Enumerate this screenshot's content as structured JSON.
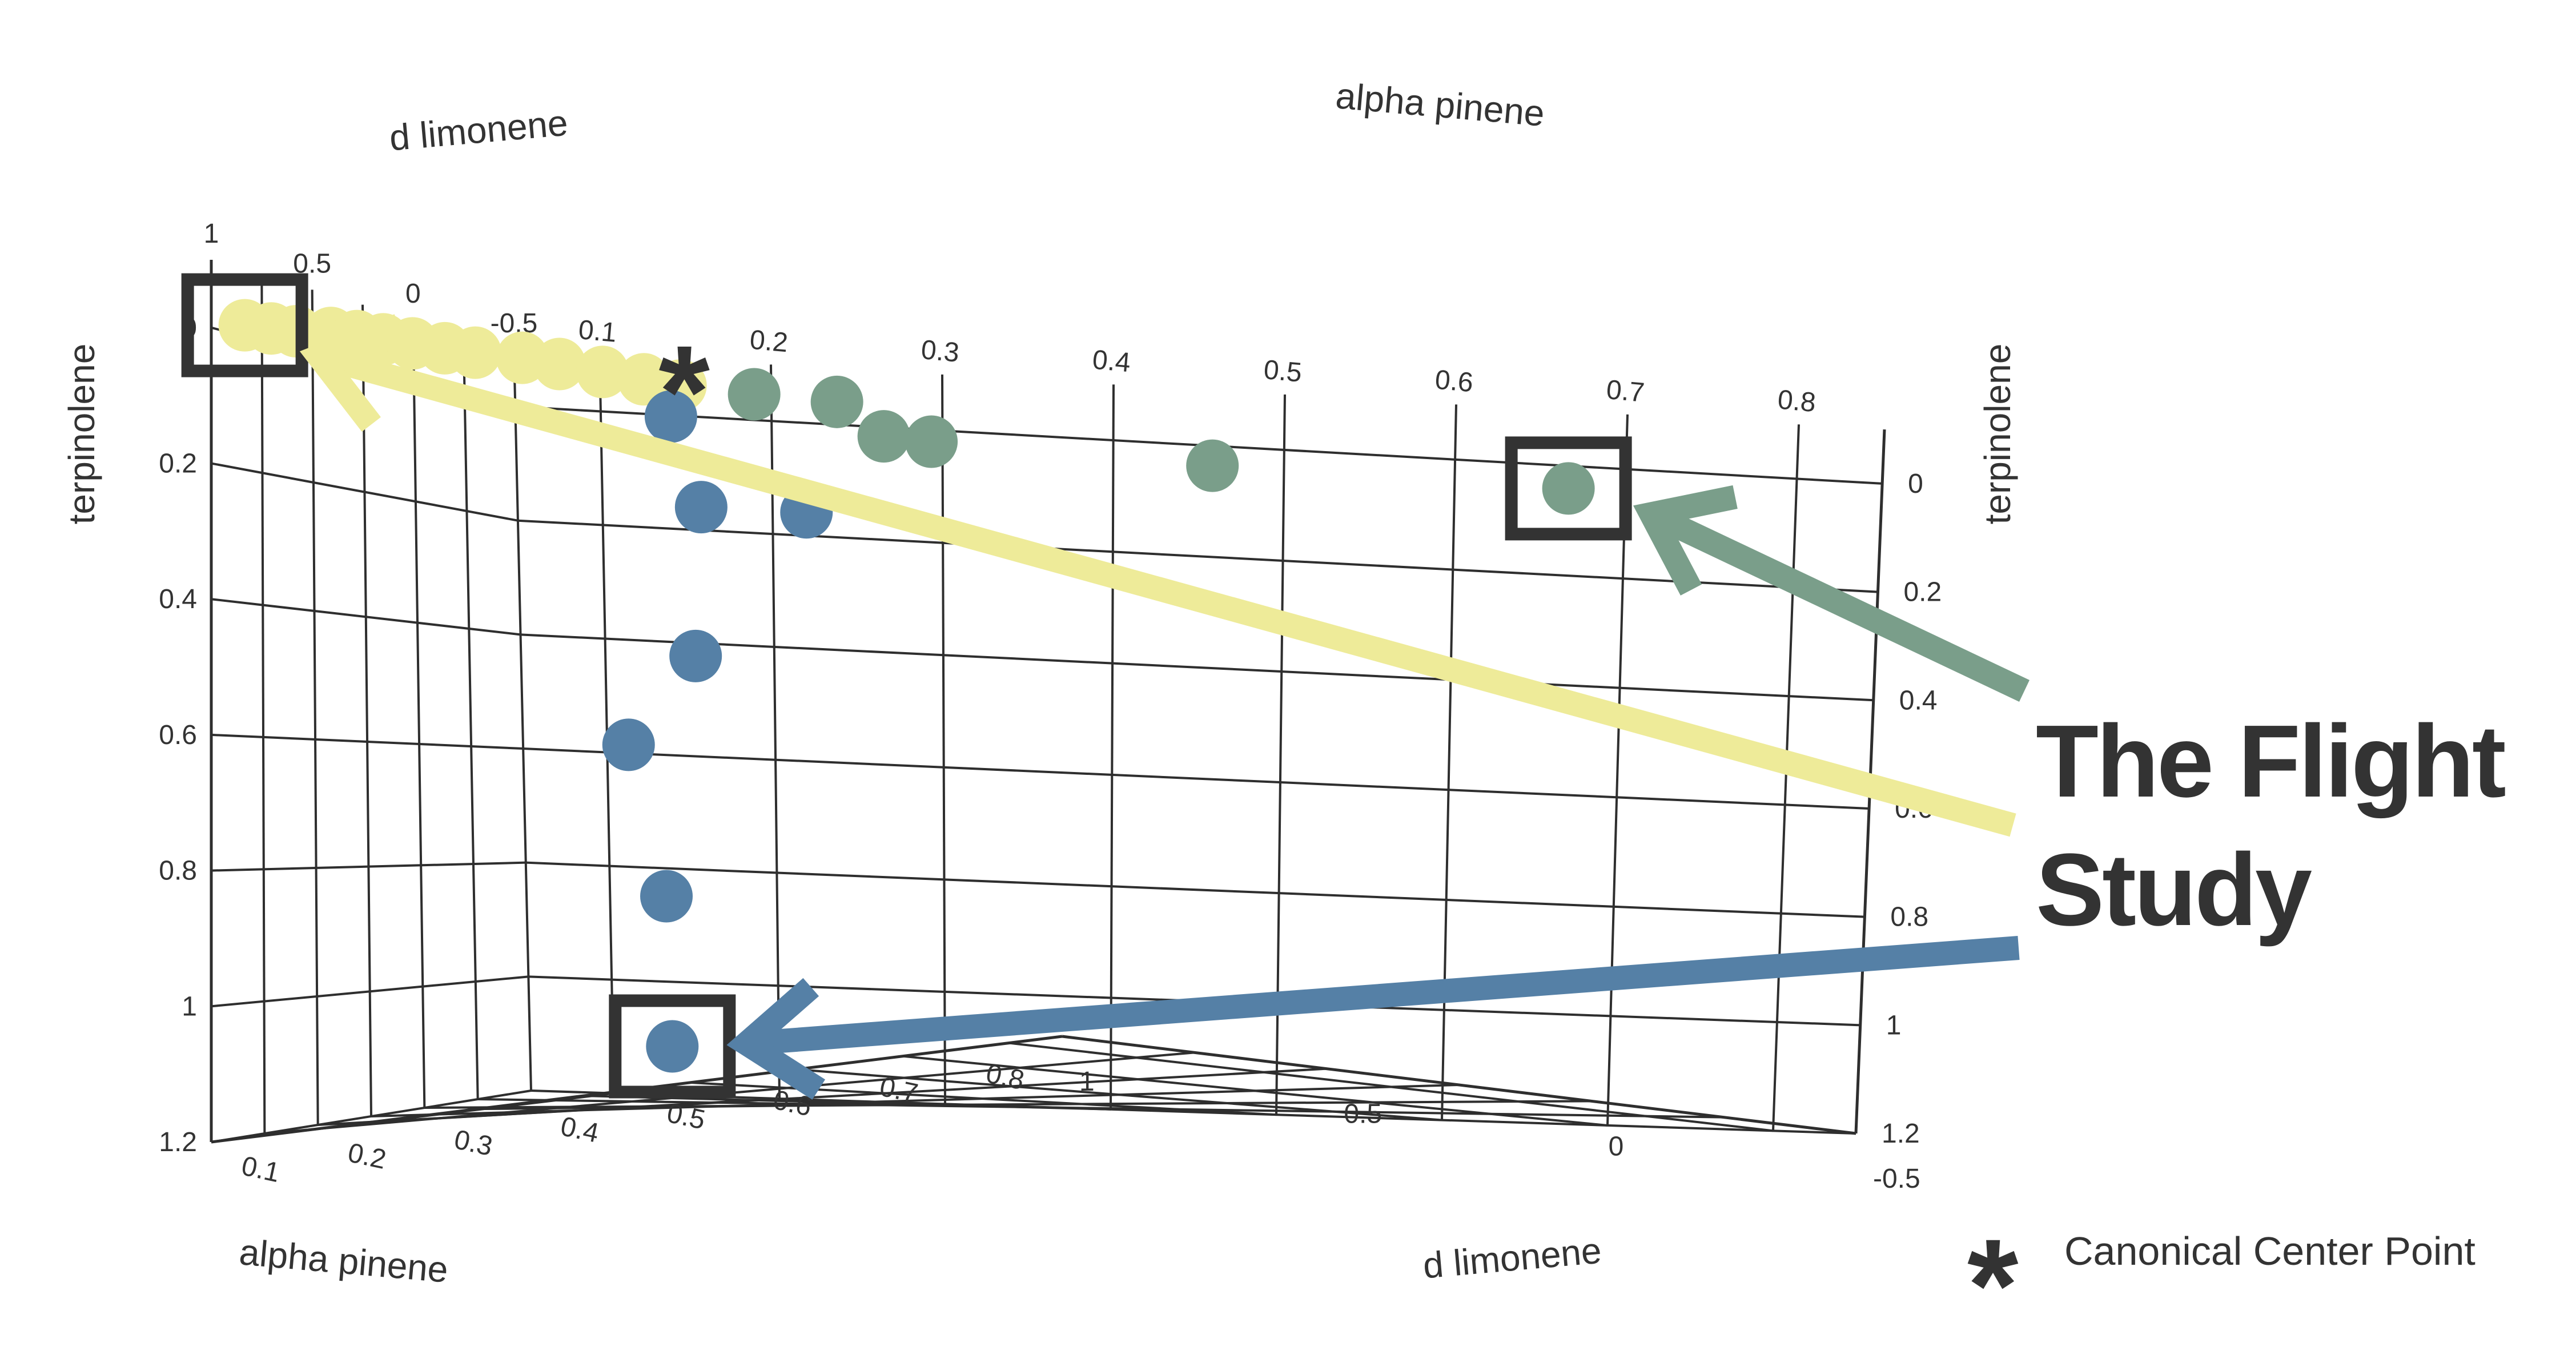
{
  "chart_data": {
    "type": "scatter",
    "projection": "3d",
    "axes": {
      "x": {
        "label": "alpha pinene",
        "ticks": [
          "0.1",
          "0.2",
          "0.3",
          "0.4",
          "0.5",
          "0.6",
          "0.7",
          "0.8"
        ]
      },
      "y": {
        "label": "d limonene",
        "ticks": [
          "-0.5",
          "0",
          "0.5",
          "1"
        ]
      },
      "z": {
        "label": "terpinolene",
        "ticks": [
          "0",
          "0.2",
          "0.4",
          "0.6",
          "0.8",
          "1",
          "1.2"
        ],
        "reversed": true
      }
    },
    "grid": true,
    "colors": {
      "yellow": "#eeeb99",
      "green": "#7a9e8a",
      "blue": "#5580a6",
      "ink": "#333333"
    },
    "series": [
      {
        "color_key": "yellow",
        "points": [
          {
            "x": 0.08,
            "y": 1.0,
            "z": 0.0
          },
          {
            "x": 0.09,
            "y": 0.93,
            "z": 0.0
          },
          {
            "x": 0.1,
            "y": 0.87,
            "z": 0.0
          },
          {
            "x": 0.12,
            "y": 0.82,
            "z": 0.0
          },
          {
            "x": 0.13,
            "y": 0.76,
            "z": 0.0
          },
          {
            "x": 0.14,
            "y": 0.7,
            "z": 0.0
          },
          {
            "x": 0.15,
            "y": 0.63,
            "z": 0.0
          },
          {
            "x": 0.16,
            "y": 0.55,
            "z": 0.0
          },
          {
            "x": 0.17,
            "y": 0.48,
            "z": 0.0
          },
          {
            "x": 0.19,
            "y": 0.4,
            "z": 0.0
          },
          {
            "x": 0.2,
            "y": 0.31,
            "z": 0.0
          },
          {
            "x": 0.21,
            "y": 0.2,
            "z": 0.0
          },
          {
            "x": 0.22,
            "y": 0.1,
            "z": 0.0
          },
          {
            "x": 0.23,
            "y": 0.02,
            "z": 0.0
          }
        ]
      },
      {
        "color_key": "green",
        "points": [
          {
            "x": 0.26,
            "y": -0.08,
            "z": 0.0
          },
          {
            "x": 0.3,
            "y": -0.15,
            "z": 0.0
          },
          {
            "x": 0.32,
            "y": -0.2,
            "z": 0.05
          },
          {
            "x": 0.34,
            "y": -0.25,
            "z": 0.05
          },
          {
            "x": 0.48,
            "y": -0.4,
            "z": 0.05
          },
          {
            "x": 0.68,
            "y": -0.45,
            "z": 0.05
          }
        ]
      },
      {
        "color_key": "blue",
        "points": [
          {
            "x": 0.22,
            "y": 0.0,
            "z": 0.05
          },
          {
            "x": 0.24,
            "y": 0.0,
            "z": 0.2
          },
          {
            "x": 0.3,
            "y": -0.05,
            "z": 0.2
          },
          {
            "x": 0.24,
            "y": 0.02,
            "z": 0.45
          },
          {
            "x": 0.2,
            "y": 0.05,
            "z": 0.6
          },
          {
            "x": 0.22,
            "y": 0.02,
            "z": 0.85
          },
          {
            "x": 0.22,
            "y": 0.0,
            "z": 1.1
          }
        ]
      }
    ],
    "highlighted": [
      {
        "series": "yellow",
        "x": 0.08,
        "y": 1.0,
        "z": 0.0
      },
      {
        "series": "green",
        "x": 0.68,
        "y": -0.45,
        "z": 0.05
      },
      {
        "series": "blue",
        "x": 0.22,
        "y": 0.0,
        "z": 1.1
      }
    ],
    "center_point": {
      "x": 0.23,
      "y": 0.0,
      "z": -0.05
    },
    "annotation": {
      "headline_lines": [
        "The Flight",
        "Study"
      ]
    },
    "legend": {
      "symbol": "*",
      "label": "Canonical Center Point",
      "position": "bottom-right"
    }
  }
}
